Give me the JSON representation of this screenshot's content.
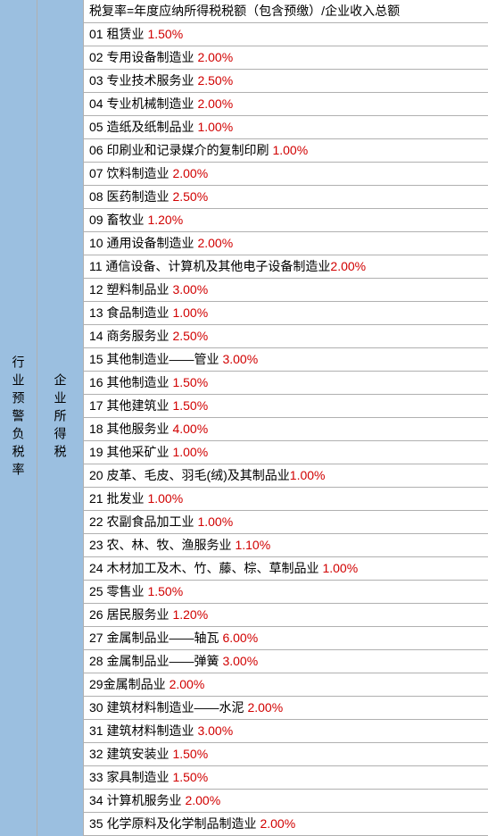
{
  "left_label": "行业预警负税率",
  "mid_label": "企业所得税",
  "formula": "税复率=年度应纳所得税税额（包含预缴）/企业收入总额",
  "text_color": "#000000",
  "value_color": "#d10000",
  "sidebar_bg": "#9bbfe0",
  "border_color": "#b0b0b0",
  "font_size": 14,
  "rows": [
    {
      "label": "01 租赁业",
      "value": "1.50%",
      "space": true
    },
    {
      "label": "02 专用设备制造业",
      "value": "2.00%",
      "space": true
    },
    {
      "label": "03 专业技术服务业",
      "value": "2.50%",
      "space": true
    },
    {
      "label": "04 专业机械制造业",
      "value": "2.00%",
      "space": true
    },
    {
      "label": "05 造纸及纸制品业",
      "value": "1.00%",
      "space": true
    },
    {
      "label": "06 印刷业和记录媒介的复制印刷",
      "value": "1.00%",
      "space": true
    },
    {
      "label": "07 饮料制造业",
      "value": "2.00%",
      "space": true
    },
    {
      "label": "08 医药制造业",
      "value": "2.50%",
      "space": true
    },
    {
      "label": "09 畜牧业",
      "value": "1.20%",
      "space": true
    },
    {
      "label": "10 通用设备制造业",
      "value": "2.00%",
      "space": true
    },
    {
      "label": "11 通信设备、计算机及其他电子设备制造业",
      "value": "2.00%",
      "space": false
    },
    {
      "label": "12 塑料制品业",
      "value": "3.00%",
      "space": true
    },
    {
      "label": "13 食品制造业",
      "value": "1.00%",
      "space": true
    },
    {
      "label": "14 商务服务业",
      "value": "2.50%",
      "space": true
    },
    {
      "label": "15 其他制造业——管业",
      "value": "3.00%",
      "space": true
    },
    {
      "label": "16 其他制造业",
      "value": "1.50%",
      "space": true
    },
    {
      "label": "17 其他建筑业",
      "value": "1.50%",
      "space": true
    },
    {
      "label": "18 其他服务业",
      "value": "4.00%",
      "space": true
    },
    {
      "label": "19 其他采矿业",
      "value": "1.00%",
      "space": true
    },
    {
      "label": "20 皮革、毛皮、羽毛(绒)及其制品业",
      "value": "1.00%",
      "space": false
    },
    {
      "label": "21 批发业",
      "value": "1.00%",
      "space": true
    },
    {
      "label": "22 农副食品加工业",
      "value": "1.00%",
      "space": true
    },
    {
      "label": "23 农、林、牧、渔服务业",
      "value": "1.10%",
      "space": true
    },
    {
      "label": "24 木材加工及木、竹、藤、棕、草制品业",
      "value": "1.00%",
      "space": true
    },
    {
      "label": "25 零售业",
      "value": "1.50%",
      "space": true
    },
    {
      "label": "26 居民服务业",
      "value": "1.20%",
      "space": true
    },
    {
      "label": "27 金属制品业——轴瓦",
      "value": "6.00%",
      "space": true
    },
    {
      "label": "28 金属制品业——弹簧",
      "value": "3.00%",
      "space": true
    },
    {
      "label": "29金属制品业",
      "value": "2.00%",
      "space": true
    },
    {
      "label": "30 建筑材料制造业——水泥",
      "value": "2.00%",
      "space": true
    },
    {
      "label": "31 建筑材料制造业",
      "value": "3.00%",
      "space": true
    },
    {
      "label": "32 建筑安装业",
      "value": "1.50%",
      "space": true
    },
    {
      "label": "33 家具制造业",
      "value": "1.50%",
      "space": true
    },
    {
      "label": "34 计算机服务业",
      "value": "2.00%",
      "space": true
    },
    {
      "label": "35 化学原料及化学制品制造业",
      "value": "2.00%",
      "space": true
    }
  ]
}
